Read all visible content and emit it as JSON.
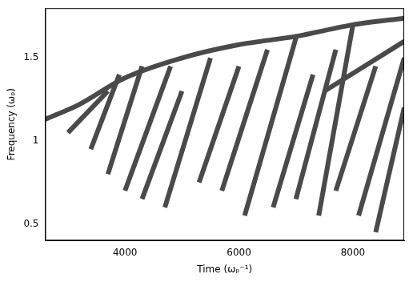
{
  "chart_data": {
    "type": "line",
    "x_label": "Time (ωₚ⁻¹)",
    "y_label": "Frequency (ωₚ)",
    "xlim": [
      2600,
      8900
    ],
    "xticks": [
      4000,
      6000,
      8000
    ],
    "ylim": [
      0.4,
      1.8
    ],
    "yticks": [
      0.5,
      1,
      1.5
    ],
    "grid": false,
    "color": "#4a4a4a",
    "marker": "none",
    "line_style": "solid",
    "series": [
      {
        "x": [
          2600,
          3200,
          4000,
          5000,
          6000,
          7000,
          8000,
          8900
        ],
        "values": [
          1.13,
          1.22,
          1.38,
          1.5,
          1.58,
          1.63,
          1.7,
          1.74
        ]
      },
      {
        "x": [
          3000,
          3700
        ],
        "values": [
          1.05,
          1.3
        ]
      },
      {
        "x": [
          3400,
          3900
        ],
        "values": [
          0.95,
          1.4
        ]
      },
      {
        "x": [
          3700,
          4300
        ],
        "values": [
          0.8,
          1.45
        ]
      },
      {
        "x": [
          4000,
          4800
        ],
        "values": [
          0.7,
          1.45
        ]
      },
      {
        "x": [
          4300,
          5000
        ],
        "values": [
          0.65,
          1.3
        ]
      },
      {
        "x": [
          4700,
          5500
        ],
        "values": [
          0.6,
          1.5
        ]
      },
      {
        "x": [
          5300,
          6000
        ],
        "values": [
          0.75,
          1.45
        ]
      },
      {
        "x": [
          5700,
          6500
        ],
        "values": [
          0.7,
          1.55
        ]
      },
      {
        "x": [
          6100,
          7000
        ],
        "values": [
          0.55,
          1.62
        ]
      },
      {
        "x": [
          6600,
          7300
        ],
        "values": [
          0.6,
          1.4
        ]
      },
      {
        "x": [
          7000,
          7700
        ],
        "values": [
          0.65,
          1.55
        ]
      },
      {
        "x": [
          7400,
          8000
        ],
        "values": [
          0.55,
          1.7
        ]
      },
      {
        "x": [
          7700,
          8400
        ],
        "values": [
          0.7,
          1.45
        ]
      },
      {
        "x": [
          8100,
          8900
        ],
        "values": [
          0.55,
          1.5
        ]
      },
      {
        "x": [
          8400,
          8900
        ],
        "values": [
          0.45,
          1.2
        ]
      },
      {
        "x": [
          7500,
          8900
        ],
        "values": [
          1.3,
          1.6
        ]
      }
    ]
  }
}
